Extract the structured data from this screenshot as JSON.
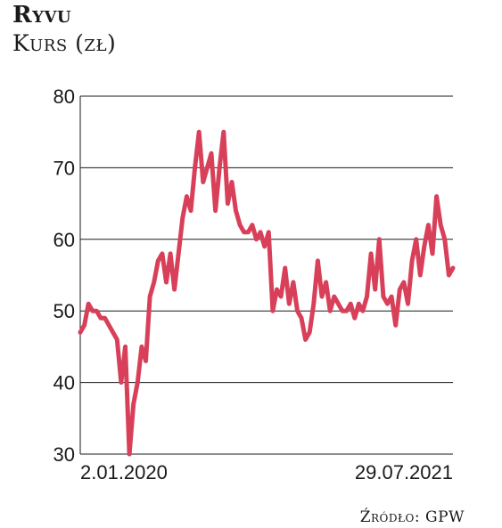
{
  "header": {
    "title": "Ryvu",
    "subtitle": "Kurs (zł)"
  },
  "footer": {
    "source": "Źródło: GPW"
  },
  "colors": {
    "series": "#d8405a",
    "grid": "#1a1a1a",
    "text": "#1a1a1a"
  },
  "chart_data": {
    "type": "line",
    "title": "Ryvu",
    "ylabel": "Kurs (zł)",
    "xlabel": "",
    "ylim": [
      30,
      80
    ],
    "yticks": [
      30,
      40,
      50,
      60,
      70,
      80
    ],
    "xtick_labels": [
      "2.01.2020",
      "29.07.2021"
    ],
    "grid": "horizontal",
    "legend": "none",
    "series": [
      {
        "name": "",
        "values": [
          47,
          48,
          51,
          50,
          50,
          49,
          49,
          48,
          47,
          46,
          40,
          45,
          30,
          37,
          40,
          45,
          43,
          52,
          54,
          57,
          58,
          54,
          58,
          53,
          58,
          63,
          66,
          64,
          70,
          75,
          68,
          70,
          72,
          64,
          70,
          75,
          65,
          68,
          64,
          62,
          61,
          61,
          62,
          60,
          61,
          59,
          61,
          50,
          53,
          52,
          56,
          51,
          54,
          50,
          49,
          46,
          47,
          51,
          57,
          52,
          54,
          50,
          52,
          51,
          50,
          50,
          51,
          49,
          51,
          50,
          52,
          58,
          53,
          60,
          52,
          51,
          52,
          48,
          53,
          54,
          51,
          57,
          60,
          55,
          59,
          62,
          58,
          66,
          62,
          60,
          55,
          56
        ]
      }
    ]
  }
}
